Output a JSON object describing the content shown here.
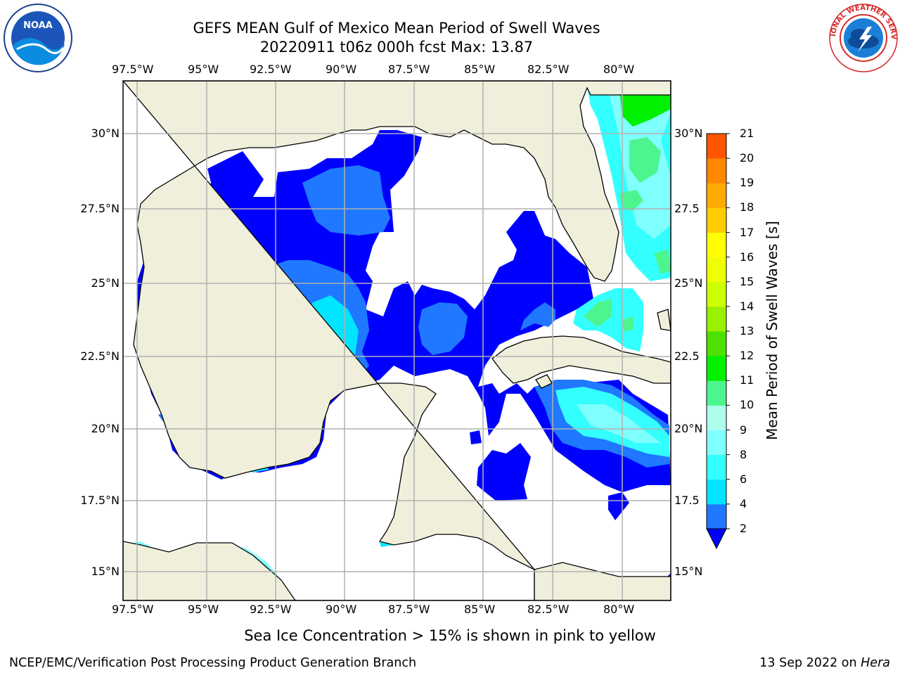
{
  "header": {
    "title_line1": "GEFS MEAN Gulf of Mexico Mean Period of Swell Waves",
    "title_line2": "20220911 t06z 000h fcst   Max: 13.87"
  },
  "logos": {
    "left_name": "noaa-logo",
    "left_text": "NOAA",
    "right_name": "nws-logo",
    "right_text": "NATIONAL WEATHER SERVICE"
  },
  "map": {
    "lon_labels_top": [
      "97.5°W",
      "95°W",
      "92.5°W",
      "90°W",
      "87.5°W",
      "85°W",
      "82.5°W",
      "80°W"
    ],
    "lon_labels_bottom": [
      "97.5°W",
      "95°W",
      "92.5°W",
      "90°W",
      "87.5°W",
      "85°W",
      "82.5°W",
      "80°W"
    ],
    "lat_labels_left": [
      "30°N",
      "27.5°N",
      "25°N",
      "22.5°N",
      "20°N",
      "17.5°N",
      "15°N"
    ],
    "lat_labels_right": [
      "30°N",
      "27.5",
      "25°N",
      "22.5",
      "20°N",
      "17.5",
      "15°N"
    ],
    "colors": {
      "land": "#efefdc",
      "ocean_missing": "#ffffff",
      "grid": "#b0b0b0"
    }
  },
  "colorbar": {
    "label": "Mean Period of Swell Waves [s]",
    "ticks": [
      "2",
      "4",
      "6",
      "8",
      "9",
      "10",
      "11",
      "12",
      "13",
      "14",
      "15",
      "16",
      "17",
      "18",
      "19",
      "20",
      "21"
    ],
    "colors": [
      "#1f78ff",
      "#00e5ff",
      "#33ffff",
      "#80ffff",
      "#adffeb",
      "#4df58f",
      "#00f000",
      "#4ce100",
      "#99f000",
      "#ccff00",
      "#eeff00",
      "#ffff00",
      "#ffcc00",
      "#ffaa00",
      "#ff8800",
      "#ff5500",
      "#ff2a00",
      "#ff0000"
    ],
    "under_color": "#0000ff"
  },
  "note": "Sea Ice Concentration > 15% is shown in pink to yellow",
  "footer": {
    "left": "NCEP/EMC/Verification Post Processing Product Generation Branch",
    "right_date": "13 Sep 2022 on ",
    "right_host": "Hera"
  }
}
